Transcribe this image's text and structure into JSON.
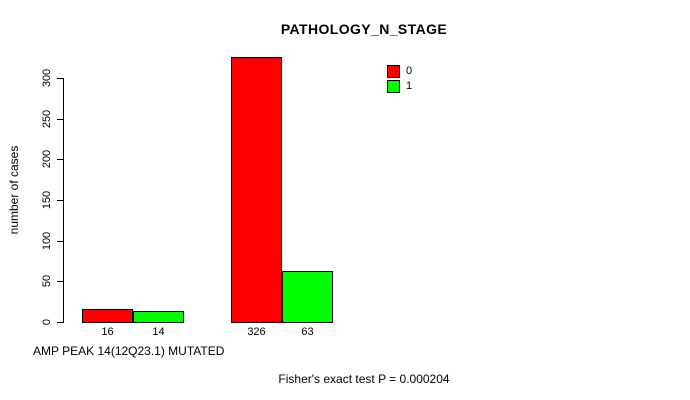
{
  "chart_data": {
    "type": "bar",
    "title": "PATHOLOGY_N_STAGE",
    "ylabel": "number of cases",
    "xlabel": "AMP PEAK 14(12Q23.1) MUTATED",
    "annotation": "Fisher's exact test P = 0.000204",
    "ylim": [
      0,
      300
    ],
    "yticks": [
      0,
      50,
      100,
      150,
      200,
      250,
      300
    ],
    "categories": [
      "",
      ""
    ],
    "series": [
      {
        "name": "0",
        "color": "#ff0000",
        "values": [
          16,
          326
        ]
      },
      {
        "name": "1",
        "color": "#00ff00",
        "values": [
          14,
          63
        ]
      }
    ],
    "show_bar_value_labels": true,
    "legend_position": "top-right",
    "grid": false,
    "background_color": "#ffffff",
    "bar_border_color": "#000000"
  }
}
